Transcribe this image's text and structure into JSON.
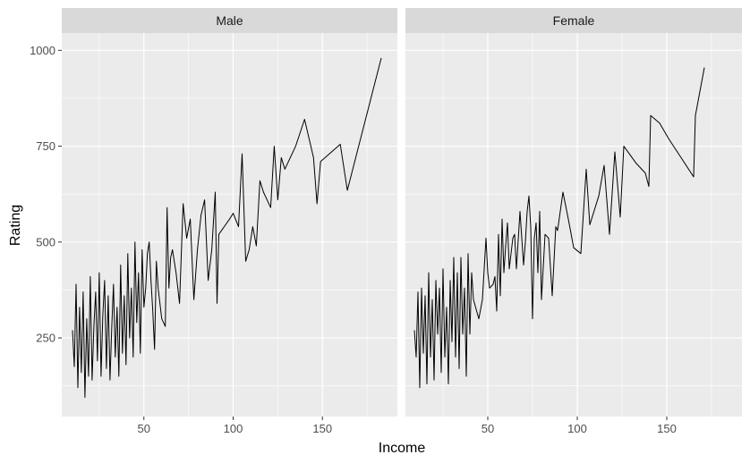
{
  "chart_data": {
    "type": "line",
    "xlabel": "Income",
    "ylabel": "Rating",
    "facets": [
      "Male",
      "Female"
    ],
    "xlim": [
      4,
      192
    ],
    "ylim": [
      45,
      1045
    ],
    "x_ticks": [
      50,
      100,
      150
    ],
    "y_ticks": [
      250,
      500,
      750,
      1000
    ],
    "grid": true,
    "series": [
      {
        "facet": "Male",
        "points": [
          [
            10,
            270
          ],
          [
            11,
            175
          ],
          [
            12,
            390
          ],
          [
            13,
            120
          ],
          [
            14,
            330
          ],
          [
            15,
            160
          ],
          [
            16,
            370
          ],
          [
            17,
            95
          ],
          [
            18,
            300
          ],
          [
            19,
            150
          ],
          [
            20,
            410
          ],
          [
            21,
            140
          ],
          [
            22,
            280
          ],
          [
            23,
            370
          ],
          [
            24,
            190
          ],
          [
            25,
            420
          ],
          [
            26,
            150
          ],
          [
            27,
            310
          ],
          [
            28,
            400
          ],
          [
            29,
            170
          ],
          [
            30,
            360
          ],
          [
            31,
            140
          ],
          [
            32,
            280
          ],
          [
            33,
            390
          ],
          [
            34,
            200
          ],
          [
            35,
            330
          ],
          [
            36,
            150
          ],
          [
            37,
            440
          ],
          [
            38,
            210
          ],
          [
            39,
            360
          ],
          [
            40,
            180
          ],
          [
            41,
            470
          ],
          [
            42,
            250
          ],
          [
            43,
            380
          ],
          [
            44,
            200
          ],
          [
            45,
            500
          ],
          [
            46,
            290
          ],
          [
            47,
            420
          ],
          [
            48,
            210
          ],
          [
            49,
            480
          ],
          [
            50,
            330
          ],
          [
            51,
            380
          ],
          [
            52,
            470
          ],
          [
            53,
            500
          ],
          [
            54,
            400
          ],
          [
            55,
            320
          ],
          [
            56,
            220
          ],
          [
            57,
            450
          ],
          [
            58,
            380
          ],
          [
            60,
            300
          ],
          [
            62,
            280
          ],
          [
            63,
            590
          ],
          [
            64,
            380
          ],
          [
            65,
            460
          ],
          [
            66,
            480
          ],
          [
            68,
            420
          ],
          [
            70,
            340
          ],
          [
            72,
            600
          ],
          [
            74,
            510
          ],
          [
            76,
            560
          ],
          [
            78,
            350
          ],
          [
            80,
            480
          ],
          [
            82,
            570
          ],
          [
            84,
            610
          ],
          [
            86,
            400
          ],
          [
            88,
            480
          ],
          [
            90,
            630
          ],
          [
            91,
            340
          ],
          [
            92,
            520
          ],
          [
            95,
            540
          ],
          [
            98,
            560
          ],
          [
            100,
            575
          ],
          [
            103,
            540
          ],
          [
            105,
            730
          ],
          [
            107,
            450
          ],
          [
            109,
            480
          ],
          [
            111,
            540
          ],
          [
            113,
            490
          ],
          [
            115,
            660
          ],
          [
            117,
            630
          ],
          [
            119,
            610
          ],
          [
            121,
            590
          ],
          [
            123,
            750
          ],
          [
            125,
            610
          ],
          [
            127,
            720
          ],
          [
            129,
            690
          ],
          [
            135,
            750
          ],
          [
            140,
            820
          ],
          [
            145,
            720
          ],
          [
            147,
            600
          ],
          [
            149,
            710
          ],
          [
            160,
            755
          ],
          [
            164,
            635
          ],
          [
            183,
            980
          ]
        ]
      },
      {
        "facet": "Female",
        "points": [
          [
            9,
            270
          ],
          [
            10,
            200
          ],
          [
            11,
            370
          ],
          [
            12,
            120
          ],
          [
            13,
            380
          ],
          [
            14,
            210
          ],
          [
            15,
            360
          ],
          [
            16,
            130
          ],
          [
            17,
            420
          ],
          [
            18,
            200
          ],
          [
            19,
            350
          ],
          [
            20,
            140
          ],
          [
            21,
            400
          ],
          [
            22,
            260
          ],
          [
            23,
            380
          ],
          [
            24,
            160
          ],
          [
            25,
            430
          ],
          [
            26,
            200
          ],
          [
            27,
            330
          ],
          [
            28,
            130
          ],
          [
            29,
            400
          ],
          [
            30,
            240
          ],
          [
            31,
            460
          ],
          [
            32,
            200
          ],
          [
            33,
            420
          ],
          [
            34,
            170
          ],
          [
            35,
            460
          ],
          [
            36,
            260
          ],
          [
            37,
            380
          ],
          [
            38,
            150
          ],
          [
            39,
            470
          ],
          [
            40,
            260
          ],
          [
            41,
            420
          ],
          [
            42,
            350
          ],
          [
            45,
            300
          ],
          [
            47,
            350
          ],
          [
            48,
            430
          ],
          [
            49,
            510
          ],
          [
            50,
            420
          ],
          [
            51,
            380
          ],
          [
            53,
            390
          ],
          [
            54,
            410
          ],
          [
            55,
            320
          ],
          [
            56,
            520
          ],
          [
            57,
            360
          ],
          [
            58,
            560
          ],
          [
            59,
            420
          ],
          [
            60,
            490
          ],
          [
            61,
            550
          ],
          [
            62,
            430
          ],
          [
            64,
            510
          ],
          [
            65,
            520
          ],
          [
            66,
            430
          ],
          [
            68,
            580
          ],
          [
            70,
            440
          ],
          [
            71,
            500
          ],
          [
            72,
            580
          ],
          [
            73,
            620
          ],
          [
            74,
            540
          ],
          [
            75,
            300
          ],
          [
            76,
            510
          ],
          [
            77,
            550
          ],
          [
            78,
            420
          ],
          [
            79,
            580
          ],
          [
            80,
            350
          ],
          [
            82,
            520
          ],
          [
            84,
            510
          ],
          [
            86,
            360
          ],
          [
            88,
            540
          ],
          [
            89,
            530
          ],
          [
            92,
            630
          ],
          [
            95,
            560
          ],
          [
            98,
            485
          ],
          [
            102,
            470
          ],
          [
            105,
            690
          ],
          [
            107,
            545
          ],
          [
            112,
            620
          ],
          [
            115,
            700
          ],
          [
            118,
            520
          ],
          [
            121,
            735
          ],
          [
            124,
            565
          ],
          [
            126,
            750
          ],
          [
            133,
            705
          ],
          [
            138,
            680
          ],
          [
            140,
            645
          ],
          [
            141,
            830
          ],
          [
            146,
            810
          ],
          [
            151,
            770
          ],
          [
            158,
            720
          ],
          [
            165,
            670
          ],
          [
            166,
            830
          ],
          [
            171,
            955
          ]
        ]
      }
    ]
  }
}
